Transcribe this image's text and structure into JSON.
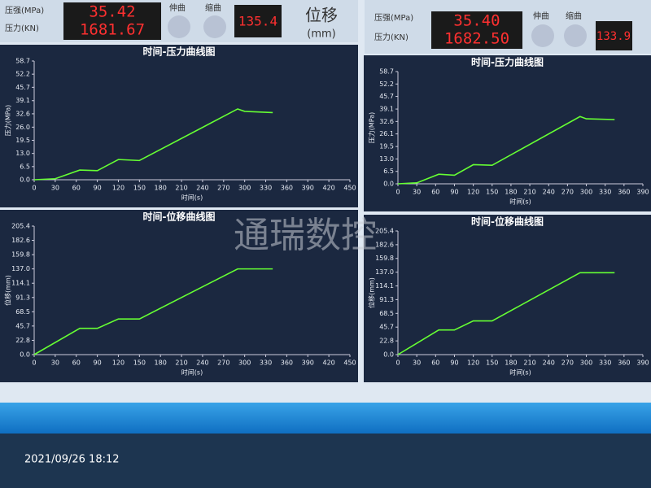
{
  "header": {
    "left": {
      "pressure_label": "压强(MPa)",
      "force_label": "压力(KN)",
      "pressure": "35.42",
      "force": "1681.67",
      "button_1": "伸曲",
      "button_2": "缩曲",
      "displacement": "135.4",
      "displacement_label": "位移",
      "displacement_unit": "(mm)"
    },
    "right": {
      "pressure_label": "压强(MPa)",
      "force_label": "压力(KN)",
      "pressure": "35.40",
      "force": "1682.50",
      "button_1": "伸曲",
      "button_2": "缩曲",
      "displacement": "133.9"
    }
  },
  "chart_data": [
    {
      "type": "line",
      "title": "时间-压力曲线图",
      "x_label": "时间(s)",
      "y_label": "压力(MPa)",
      "x": [
        0,
        30,
        65,
        90,
        120,
        150,
        290,
        300,
        340
      ],
      "values": [
        0,
        0.5,
        4.8,
        4.5,
        10,
        9.5,
        35,
        33.8,
        33.2
      ],
      "color": "#66ff33",
      "xlim": [
        0,
        450
      ],
      "xticks": [
        0,
        30,
        60,
        90,
        120,
        150,
        180,
        210,
        240,
        270,
        300,
        330,
        360,
        390,
        420,
        450
      ],
      "ylim": [
        0,
        58.7
      ],
      "yticks": [
        {
          "value": 0,
          "label": "0.0"
        },
        6.5,
        {
          "value": 13,
          "label": "13.0"
        },
        19.5,
        {
          "value": 26,
          "label": "26.0"
        },
        32.6,
        39.1,
        45.7,
        52.2,
        58.7
      ]
    },
    {
      "type": "line",
      "title": "时间-位移曲线图",
      "x_label": "时间(s)",
      "y_label": "位移(mm)",
      "x": [
        0,
        65,
        90,
        120,
        150,
        290,
        340
      ],
      "values": [
        0,
        42,
        42,
        57,
        57,
        137,
        137
      ],
      "color": "#66ff33",
      "xlim": [
        0,
        450
      ],
      "xticks": [
        0,
        30,
        60,
        90,
        120,
        150,
        180,
        210,
        240,
        270,
        300,
        330,
        360,
        390,
        420,
        450
      ],
      "ylim": [
        0,
        205.4
      ],
      "yticks": [
        {
          "value": 0,
          "label": "0.0"
        },
        22.8,
        45.7,
        68.5,
        91.3,
        114.1,
        {
          "value": 137,
          "label": "137.0"
        },
        159.8,
        182.6,
        205.4
      ]
    },
    {
      "type": "line",
      "title": "时间-压力曲线图",
      "x_label": "时间(s)",
      "y_label": "压力(MPa)",
      "x": [
        0,
        30,
        65,
        90,
        120,
        150,
        290,
        300,
        345
      ],
      "values": [
        0,
        0.5,
        5,
        4.5,
        10,
        9.7,
        35.2,
        34,
        33.6
      ],
      "color": "#66ff33",
      "xlim": [
        0,
        390
      ],
      "xticks": [
        0,
        30,
        60,
        90,
        120,
        150,
        180,
        210,
        240,
        270,
        300,
        330,
        360,
        390
      ],
      "ylim": [
        0,
        58.7
      ],
      "yticks": [
        {
          "value": 0,
          "label": "0.0"
        },
        6.5,
        {
          "value": 13,
          "label": "13.0"
        },
        19.5,
        26.1,
        32.6,
        39.1,
        45.7,
        52.2,
        58.7
      ]
    },
    {
      "type": "line",
      "title": "时间-位移曲线图",
      "x_label": "时间(s)",
      "y_label": "位移(mm)",
      "x": [
        0,
        65,
        90,
        120,
        150,
        290,
        345
      ],
      "values": [
        0,
        41,
        41,
        56,
        56,
        136,
        136
      ],
      "color": "#66ff33",
      "xlim": [
        0,
        390
      ],
      "xticks": [
        0,
        30,
        60,
        90,
        120,
        150,
        180,
        210,
        240,
        270,
        300,
        330,
        360,
        390
      ],
      "ylim": [
        0,
        205.4
      ],
      "yticks": [
        {
          "value": 0,
          "label": "0.0"
        },
        22.8,
        45.7,
        68.5,
        91.3,
        114.1,
        {
          "value": 137,
          "label": "137.0"
        },
        159.8,
        182.6,
        205.4
      ]
    }
  ],
  "watermark": "通瑞数控",
  "timestamp": "2021/09/26 18:12"
}
